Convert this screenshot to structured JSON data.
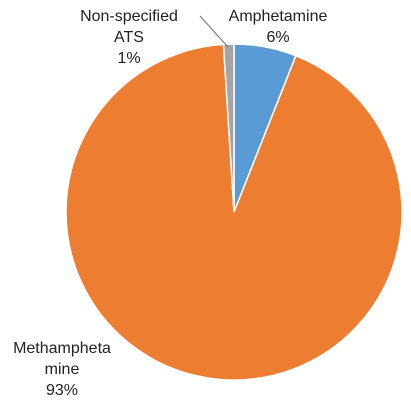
{
  "chart_data": {
    "type": "pie",
    "title": "",
    "start_angle_deg": 0,
    "direction": "clockwise",
    "slices": [
      {
        "name": "Amphetamine",
        "value": 6,
        "label_lines": [
          "Amphetamine"
        ],
        "pct_text": "6%",
        "color": "#5B9BD5"
      },
      {
        "name": "Methamphetamine",
        "value": 93,
        "label_lines": [
          "Methampheta",
          "mine"
        ],
        "pct_text": "93%",
        "color": "#ED7D31"
      },
      {
        "name": "Non-specified ATS",
        "value": 1,
        "label_lines": [
          "Non-specified",
          "ATS"
        ],
        "pct_text": "1%",
        "color": "#A5A5A5"
      }
    ]
  }
}
